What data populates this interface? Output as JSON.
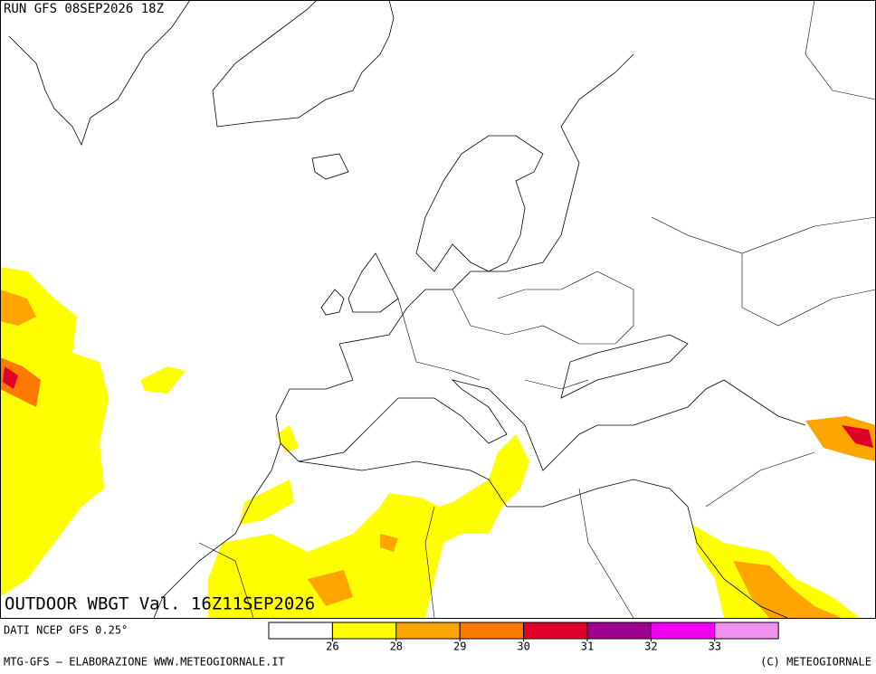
{
  "header": {
    "run": "RUN GFS 08SEP2026 18Z",
    "title": "OUTDOOR WBGT Val. 16Z11SEP2026",
    "source": "DATI NCEP GFS 0.25°",
    "credit": "MTG-GFS — ELABORAZIONE WWW.METEOGIORNALE.IT",
    "copyright": "(C) METEOGIORNALE"
  },
  "legend": {
    "ticks": [
      26,
      28,
      29,
      30,
      31,
      32,
      33
    ],
    "colors": [
      "#ffffff",
      "#ffff00",
      "#ffa500",
      "#ff7a00",
      "#e0002a",
      "#a00090",
      "#f000f0",
      "#f090f0"
    ]
  }
}
